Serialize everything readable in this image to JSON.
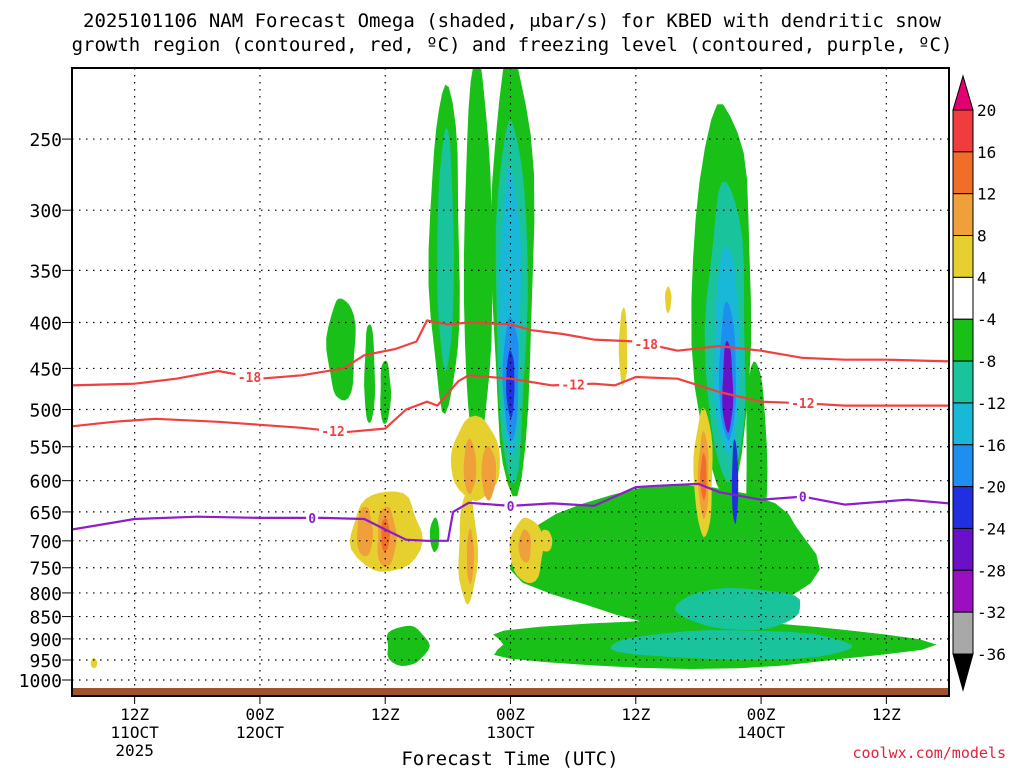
{
  "header": {
    "title_line1": "2025101106 NAM Forecast Omega (shaded, μbar/s) for KBED with dendritic snow",
    "title_line2": "growth region (contoured, red, ºC) and freezing level (contoured, purple, ºC)"
  },
  "footer": {
    "credit": "coolwx.com/models"
  },
  "chart_data": {
    "type": "heatmap",
    "title": "2025101106 NAM Forecast Omega (shaded, μbar/s) for KBED with dendritic snow growth region (contoured, red, ºC) and freezing level (contoured, purple, ºC)",
    "xlabel": "Forecast Time (UTC)",
    "ylabel": "",
    "x_unit": "forecast hour from 2025-10-11 06Z",
    "xlim": [
      0,
      84
    ],
    "ylim": [
      1000,
      200
    ],
    "y_ticks": [
      250,
      300,
      350,
      400,
      450,
      500,
      550,
      600,
      650,
      700,
      750,
      800,
      850,
      900,
      950,
      1000
    ],
    "x_ticks": [
      {
        "hour": 6,
        "line1": "12Z",
        "line2": "11OCT",
        "line3": "2025"
      },
      {
        "hour": 18,
        "line1": "00Z",
        "line2": "12OCT",
        "line3": ""
      },
      {
        "hour": 30,
        "line1": "12Z",
        "line2": "",
        "line3": ""
      },
      {
        "hour": 42,
        "line1": "00Z",
        "line2": "13OCT",
        "line3": ""
      },
      {
        "hour": 54,
        "line1": "12Z",
        "line2": "",
        "line3": ""
      },
      {
        "hour": 66,
        "line1": "00Z",
        "line2": "14OCT",
        "line3": ""
      },
      {
        "hour": 78,
        "line1": "12Z",
        "line2": "",
        "line3": ""
      }
    ],
    "grid": true,
    "colorbar": {
      "levels": [
        "20",
        "16",
        "12",
        "8",
        "4",
        "-4",
        "-8",
        "-12",
        "-16",
        "-20",
        "-24",
        "-28",
        "-32",
        "-36"
      ],
      "colors": [
        "#e00070",
        "#f03c3c",
        "#f06e2a",
        "#f0a03a",
        "#e6d030",
        "#ffffff",
        "#18c018",
        "#19c39b",
        "#1ab8d8",
        "#1e8ef0",
        "#2030e0",
        "#6a10c8",
        "#9a10c0",
        "#a8a8a8",
        "#000000"
      ]
    },
    "omega_regions": [
      {
        "color": "#18c018",
        "t0": 24.5,
        "t1": 27.2,
        "p_top": 375,
        "p_bot": 490
      },
      {
        "color": "#18c018",
        "t0": 28.0,
        "t1": 29.0,
        "p_top": 400,
        "p_bot": 520
      },
      {
        "color": "#18c018",
        "t0": 29.5,
        "t1": 30.5,
        "p_top": 440,
        "p_bot": 520
      },
      {
        "color": "#18c018",
        "t0": 34.3,
        "t1": 37.2,
        "p_top": 220,
        "p_bot": 500
      },
      {
        "color": "#18c018",
        "t0": 37.5,
        "t1": 40.2,
        "p_top": 205,
        "p_bot": 560
      },
      {
        "color": "#18c018",
        "t0": 40.2,
        "t1": 44.2,
        "p_top": 200,
        "p_bot": 620
      },
      {
        "color": "#19c39b",
        "t0": 35.0,
        "t1": 36.6,
        "p_top": 245,
        "p_bot": 450
      },
      {
        "color": "#19c39b",
        "t0": 40.6,
        "t1": 43.6,
        "p_top": 240,
        "p_bot": 600
      },
      {
        "color": "#1ab8d8",
        "t0": 41.0,
        "t1": 43.0,
        "p_top": 270,
        "p_bot": 560
      },
      {
        "color": "#1e8ef0",
        "t0": 41.3,
        "t1": 42.8,
        "p_top": 395,
        "p_bot": 540
      },
      {
        "color": "#2030e0",
        "t0": 41.6,
        "t1": 42.4,
        "p_top": 430,
        "p_bot": 510
      },
      {
        "color": "#18c018",
        "t0": 43.0,
        "t1": 72.0,
        "p_top": 610,
        "p_bot": 860
      },
      {
        "color": "#18c018",
        "t0": 45.0,
        "t1": 47.8,
        "p_top": 660,
        "p_bot": 760
      },
      {
        "color": "#18c018",
        "t0": 59.5,
        "t1": 65.2,
        "p_top": 230,
        "p_bot": 620
      },
      {
        "color": "#19c39b",
        "t0": 60.8,
        "t1": 64.6,
        "p_top": 280,
        "p_bot": 600
      },
      {
        "color": "#1ab8d8",
        "t0": 61.5,
        "t1": 64.0,
        "p_top": 330,
        "p_bot": 560
      },
      {
        "color": "#1e8ef0",
        "t0": 62.0,
        "t1": 63.6,
        "p_top": 380,
        "p_bot": 540
      },
      {
        "color": "#6a10c8",
        "t0": 62.3,
        "t1": 63.3,
        "p_top": 420,
        "p_bot": 530
      },
      {
        "color": "#2030e0",
        "t0": 63.2,
        "t1": 63.8,
        "p_top": 540,
        "p_bot": 670
      },
      {
        "color": "#18c018",
        "t0": 64.5,
        "t1": 66.5,
        "p_top": 440,
        "p_bot": 770
      },
      {
        "color": "#18c018",
        "t0": 30.0,
        "t1": 34.0,
        "p_top": 870,
        "p_bot": 965
      },
      {
        "color": "#18c018",
        "t0": 38.5,
        "t1": 80.0,
        "p_top": 860,
        "p_bot": 970
      },
      {
        "color": "#19c39b",
        "t0": 52.0,
        "t1": 75.0,
        "p_top": 880,
        "p_bot": 950
      },
      {
        "color": "#19c39b",
        "t0": 58.0,
        "t1": 70.0,
        "p_top": 790,
        "p_bot": 880
      },
      {
        "color": "#18c018",
        "t0": 34.3,
        "t1": 35.2,
        "p_top": 660,
        "p_bot": 720
      },
      {
        "color": "#e6d030",
        "t0": 26.8,
        "t1": 33.5,
        "p_top": 615,
        "p_bot": 760
      },
      {
        "color": "#f0a03a",
        "t0": 27.3,
        "t1": 28.8,
        "p_top": 640,
        "p_bot": 730
      },
      {
        "color": "#f0a03a",
        "t0": 29.2,
        "t1": 31.0,
        "p_top": 640,
        "p_bot": 750
      },
      {
        "color": "#f06e2a",
        "t0": 29.6,
        "t1": 30.4,
        "p_top": 660,
        "p_bot": 720
      },
      {
        "color": "#e6d030",
        "t0": 36.3,
        "t1": 41.0,
        "p_top": 510,
        "p_bot": 630
      },
      {
        "color": "#e6d030",
        "t0": 37.0,
        "t1": 38.8,
        "p_top": 620,
        "p_bot": 820
      },
      {
        "color": "#f0a03a",
        "t0": 37.5,
        "t1": 38.7,
        "p_top": 540,
        "p_bot": 620
      },
      {
        "color": "#f0a03a",
        "t0": 39.2,
        "t1": 40.6,
        "p_top": 550,
        "p_bot": 630
      },
      {
        "color": "#f0a03a",
        "t0": 37.8,
        "t1": 38.5,
        "p_top": 680,
        "p_bot": 780
      },
      {
        "color": "#e6d030",
        "t0": 42.0,
        "t1": 45.2,
        "p_top": 660,
        "p_bot": 780
      },
      {
        "color": "#f0a03a",
        "t0": 42.8,
        "t1": 44.0,
        "p_top": 680,
        "p_bot": 740
      },
      {
        "color": "#e6d030",
        "t0": 44.7,
        "t1": 46.0,
        "p_top": 680,
        "p_bot": 720
      },
      {
        "color": "#e6d030",
        "t0": 52.4,
        "t1": 53.2,
        "p_top": 385,
        "p_bot": 470
      },
      {
        "color": "#e6d030",
        "t0": 59.6,
        "t1": 61.4,
        "p_top": 500,
        "p_bot": 690
      },
      {
        "color": "#f0a03a",
        "t0": 60.0,
        "t1": 61.0,
        "p_top": 530,
        "p_bot": 660
      },
      {
        "color": "#f06e2a",
        "t0": 60.2,
        "t1": 60.8,
        "p_top": 560,
        "p_bot": 630
      },
      {
        "color": "#e6d030",
        "t0": 56.8,
        "t1": 57.4,
        "p_top": 365,
        "p_bot": 390
      },
      {
        "color": "#e6d030",
        "t0": 1.8,
        "t1": 2.4,
        "p_top": 945,
        "p_bot": 970
      }
    ],
    "contours": [
      {
        "name": "-18 ºC",
        "label": "-18",
        "color": "#f04040",
        "points": [
          [
            0,
            470
          ],
          [
            6,
            468
          ],
          [
            10,
            462
          ],
          [
            14,
            453
          ],
          [
            18,
            462
          ],
          [
            22,
            458
          ],
          [
            26,
            450
          ],
          [
            28,
            435
          ],
          [
            31,
            428
          ],
          [
            33,
            420
          ],
          [
            34,
            398
          ],
          [
            36,
            402
          ],
          [
            38,
            400
          ],
          [
            42,
            402
          ],
          [
            44,
            408
          ],
          [
            47,
            412
          ],
          [
            50,
            418
          ],
          [
            54,
            420
          ],
          [
            58,
            430
          ],
          [
            62,
            425
          ],
          [
            66,
            430
          ],
          [
            70,
            438
          ],
          [
            74,
            440
          ],
          [
            78,
            440
          ],
          [
            84,
            442
          ]
        ],
        "label_hours": [
          17,
          55
        ]
      },
      {
        "name": "-12 ºC",
        "label": "-12",
        "color": "#f04040",
        "points": [
          [
            0,
            522
          ],
          [
            4,
            516
          ],
          [
            8,
            512
          ],
          [
            14,
            516
          ],
          [
            18,
            520
          ],
          [
            22,
            524
          ],
          [
            26,
            530
          ],
          [
            30,
            525
          ],
          [
            32,
            500
          ],
          [
            34,
            490
          ],
          [
            35,
            495
          ],
          [
            37,
            465
          ],
          [
            38,
            458
          ],
          [
            42,
            462
          ],
          [
            46,
            470
          ],
          [
            50,
            468
          ],
          [
            52,
            470
          ],
          [
            54,
            460
          ],
          [
            58,
            462
          ],
          [
            62,
            478
          ],
          [
            66,
            490
          ],
          [
            70,
            492
          ],
          [
            74,
            495
          ],
          [
            78,
            495
          ],
          [
            84,
            495
          ]
        ],
        "label_hours": [
          25,
          48,
          70
        ]
      },
      {
        "name": "0 ºC freezing level",
        "label": "0",
        "color": "#8c1ccc",
        "points": [
          [
            0,
            680
          ],
          [
            6,
            662
          ],
          [
            12,
            658
          ],
          [
            18,
            660
          ],
          [
            24,
            660
          ],
          [
            28,
            662
          ],
          [
            30,
            680
          ],
          [
            32,
            698
          ],
          [
            34,
            700
          ],
          [
            36,
            700
          ],
          [
            36.5,
            650
          ],
          [
            38,
            635
          ],
          [
            42,
            640
          ],
          [
            46,
            636
          ],
          [
            50,
            640
          ],
          [
            54,
            610
          ],
          [
            56,
            608
          ],
          [
            60,
            605
          ],
          [
            62,
            618
          ],
          [
            66,
            630
          ],
          [
            70,
            625
          ],
          [
            74,
            638
          ],
          [
            80,
            630
          ],
          [
            84,
            636
          ]
        ],
        "label_hours": [
          23,
          42,
          70
        ]
      }
    ]
  }
}
